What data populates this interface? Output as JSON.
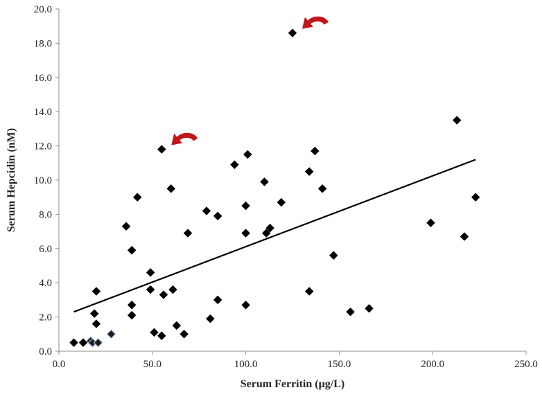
{
  "chart_data": {
    "type": "scatter",
    "xlabel": "Serum Ferritin (µg/L)",
    "ylabel": "Serum Hepcidin (nM)",
    "xlim": [
      0,
      250
    ],
    "ylim": [
      0,
      20
    ],
    "x_ticks": [
      "0.0",
      "50.0",
      "100.0",
      "150.0",
      "200.0",
      "250.0"
    ],
    "y_ticks": [
      "0.0",
      "2.0",
      "4.0",
      "6.0",
      "8.0",
      "10.0",
      "12.0",
      "14.0",
      "16.0",
      "18.0",
      "20.0"
    ],
    "grid": false,
    "legend": "none",
    "marker": "diamond",
    "marker_color": "#000000",
    "trendline": {
      "type": "linear",
      "x": [
        8,
        223
      ],
      "y": [
        2.3,
        11.2
      ],
      "color": "#000000"
    },
    "annotations": [
      {
        "kind": "curved-arrow",
        "color": "#c0171b",
        "points_to": {
          "x": 125,
          "y": 18.6
        }
      },
      {
        "kind": "curved-arrow",
        "color": "#c0171b",
        "points_to": {
          "x": 55,
          "y": 11.8
        }
      }
    ],
    "points": [
      {
        "x": 8,
        "y": 0.5
      },
      {
        "x": 13,
        "y": 0.5
      },
      {
        "x": 17,
        "y": 0.6
      },
      {
        "x": 18,
        "y": 0.5
      },
      {
        "x": 19,
        "y": 2.2
      },
      {
        "x": 20,
        "y": 3.5
      },
      {
        "x": 20,
        "y": 1.6
      },
      {
        "x": 21,
        "y": 0.5
      },
      {
        "x": 28,
        "y": 1.0
      },
      {
        "x": 36,
        "y": 7.3
      },
      {
        "x": 39,
        "y": 5.9
      },
      {
        "x": 39,
        "y": 2.7
      },
      {
        "x": 39,
        "y": 2.1
      },
      {
        "x": 42,
        "y": 9.0
      },
      {
        "x": 49,
        "y": 4.6
      },
      {
        "x": 49,
        "y": 3.6
      },
      {
        "x": 51,
        "y": 1.1
      },
      {
        "x": 55,
        "y": 11.8
      },
      {
        "x": 56,
        "y": 3.3
      },
      {
        "x": 55,
        "y": 0.9
      },
      {
        "x": 60,
        "y": 9.5
      },
      {
        "x": 61,
        "y": 3.6
      },
      {
        "x": 63,
        "y": 1.5
      },
      {
        "x": 67,
        "y": 1.0
      },
      {
        "x": 69,
        "y": 6.9
      },
      {
        "x": 79,
        "y": 8.2
      },
      {
        "x": 81,
        "y": 1.9
      },
      {
        "x": 85,
        "y": 7.9
      },
      {
        "x": 85,
        "y": 3.0
      },
      {
        "x": 94,
        "y": 10.9
      },
      {
        "x": 100,
        "y": 8.5
      },
      {
        "x": 100,
        "y": 6.9
      },
      {
        "x": 100,
        "y": 2.7
      },
      {
        "x": 101,
        "y": 11.5
      },
      {
        "x": 110,
        "y": 9.9
      },
      {
        "x": 111,
        "y": 6.9
      },
      {
        "x": 113,
        "y": 7.2
      },
      {
        "x": 119,
        "y": 8.7
      },
      {
        "x": 125,
        "y": 18.6
      },
      {
        "x": 134,
        "y": 10.5
      },
      {
        "x": 134,
        "y": 3.5
      },
      {
        "x": 137,
        "y": 11.7
      },
      {
        "x": 141,
        "y": 9.5
      },
      {
        "x": 147,
        "y": 5.6
      },
      {
        "x": 156,
        "y": 2.3
      },
      {
        "x": 166,
        "y": 2.5
      },
      {
        "x": 199,
        "y": 7.5
      },
      {
        "x": 213,
        "y": 13.5
      },
      {
        "x": 217,
        "y": 6.7
      },
      {
        "x": 223,
        "y": 9.0
      }
    ]
  }
}
